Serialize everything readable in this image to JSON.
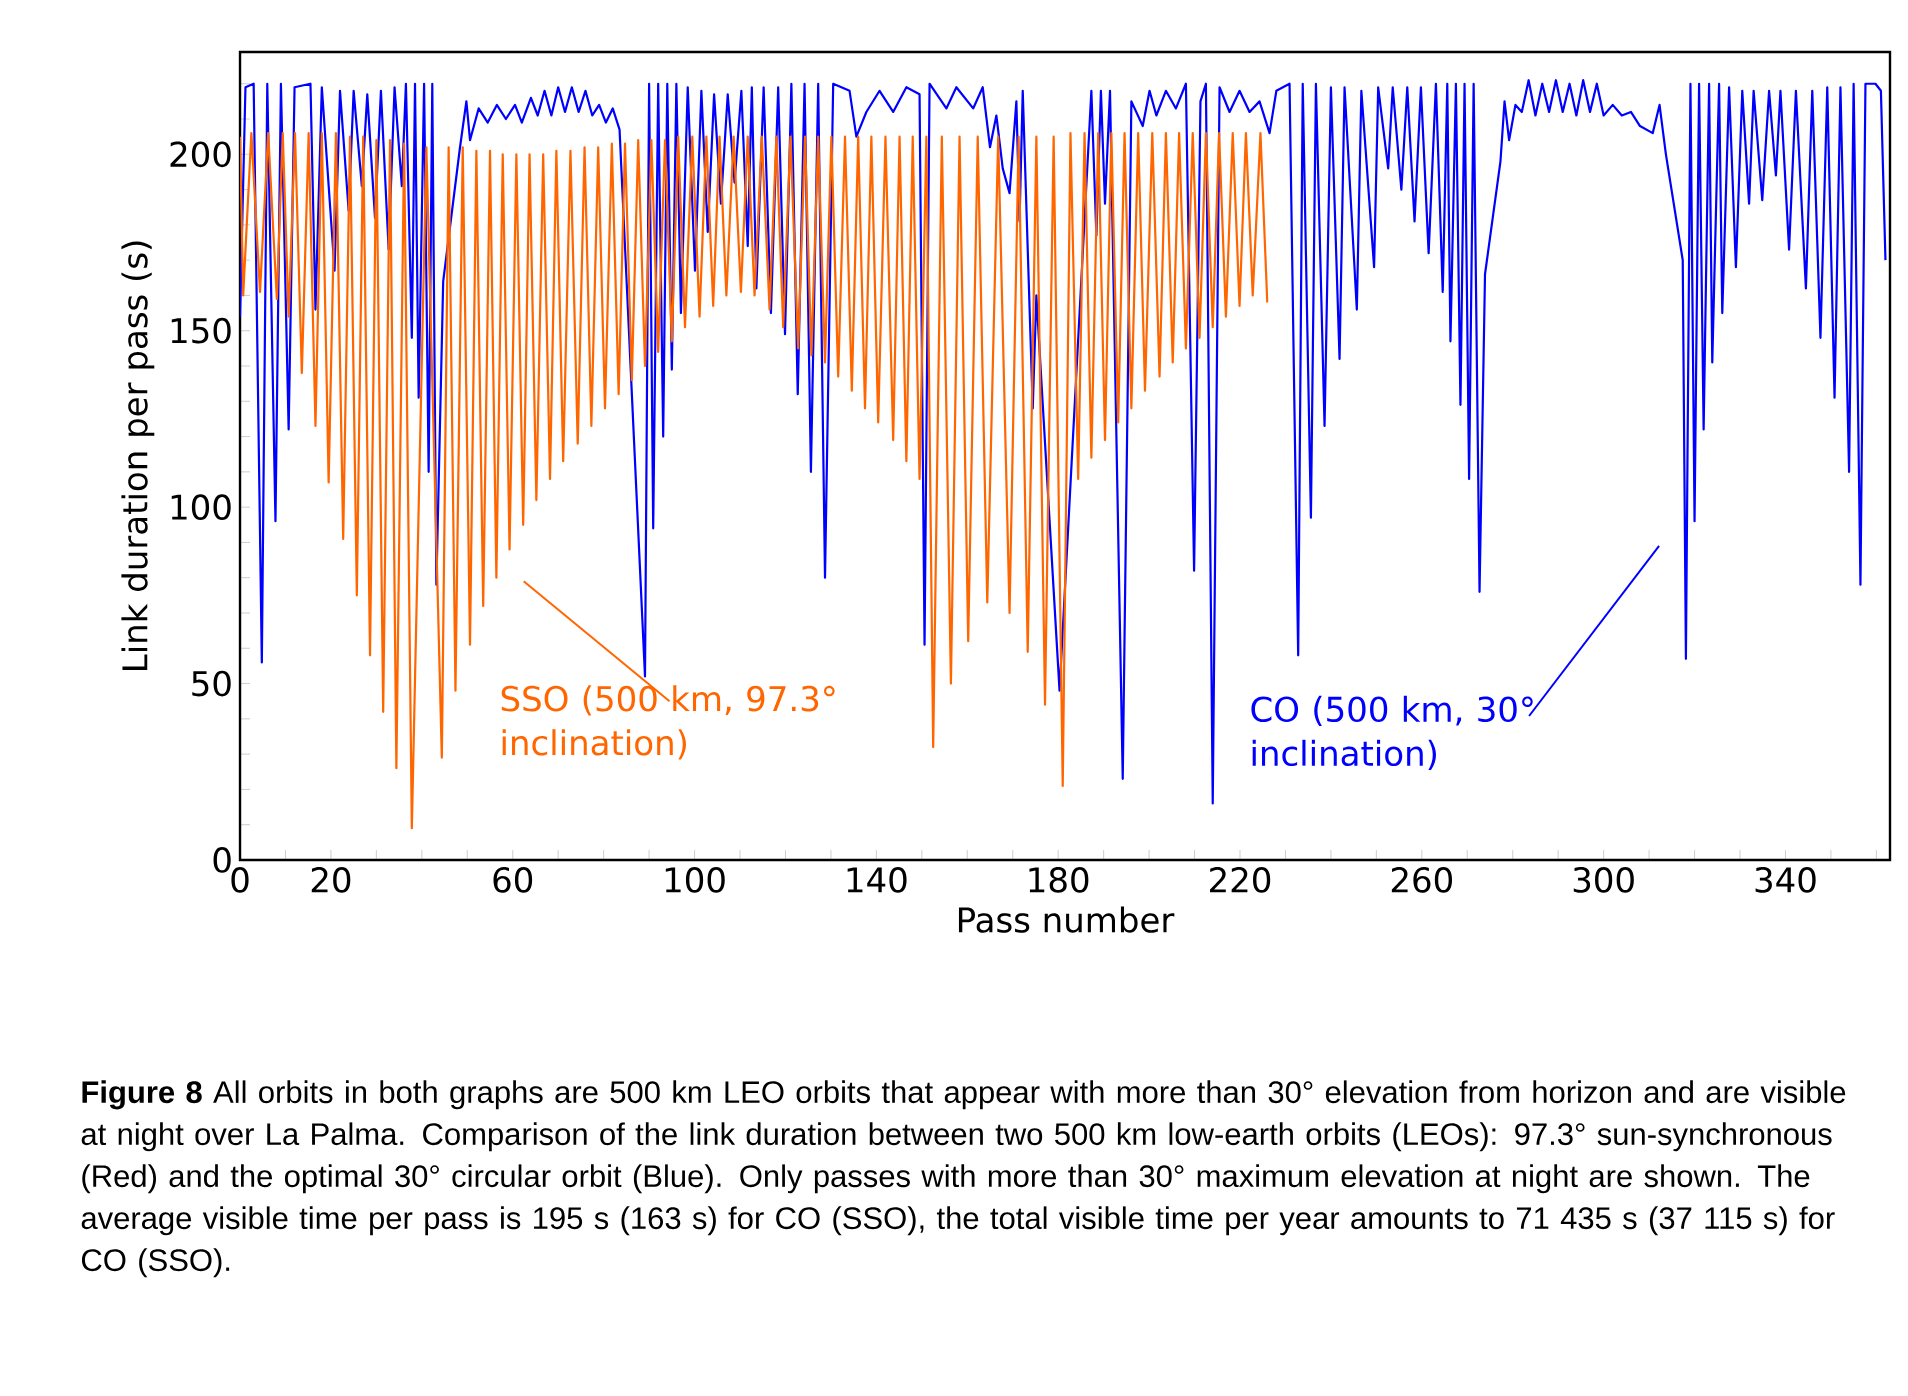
{
  "chart_data": {
    "type": "line",
    "xlabel": "Pass number",
    "ylabel": "Link duration per pass (s)",
    "xlim": [
      0,
      363
    ],
    "ylim": [
      0,
      229
    ],
    "xticks": [
      0,
      {
        "value": 10,
        "label": null
      },
      20,
      {
        "value": 30,
        "label": null
      },
      {
        "value": 40,
        "label": null
      },
      {
        "value": 50,
        "label": null
      },
      60,
      {
        "value": 70,
        "label": null
      },
      {
        "value": 80,
        "label": null
      },
      {
        "value": 90,
        "label": null
      },
      100,
      {
        "value": 110,
        "label": null
      },
      {
        "value": 120,
        "label": null
      },
      {
        "value": 130,
        "label": null
      },
      140,
      {
        "value": 150,
        "label": null
      },
      {
        "value": 160,
        "label": null
      },
      {
        "value": 170,
        "label": null
      },
      180,
      {
        "value": 190,
        "label": null
      },
      {
        "value": 200,
        "label": null
      },
      {
        "value": 210,
        "label": null
      },
      220,
      {
        "value": 230,
        "label": null
      },
      {
        "value": 240,
        "label": null
      },
      {
        "value": 250,
        "label": null
      },
      260,
      {
        "value": 270,
        "label": null
      },
      {
        "value": 280,
        "label": null
      },
      {
        "value": 290,
        "label": null
      },
      300,
      {
        "value": 310,
        "label": null
      },
      {
        "value": 320,
        "label": null
      },
      {
        "value": 330,
        "label": null
      },
      340,
      {
        "value": 350,
        "label": null
      },
      {
        "value": 360,
        "label": null
      }
    ],
    "yticks": [
      0,
      {
        "value": 10,
        "label": null
      },
      {
        "value": 20,
        "label": null
      },
      {
        "value": 30,
        "label": null
      },
      {
        "value": 40,
        "label": null
      },
      50,
      {
        "value": 60,
        "label": null
      },
      {
        "value": 70,
        "label": null
      },
      {
        "value": 80,
        "label": null
      },
      {
        "value": 90,
        "label": null
      },
      100,
      {
        "value": 110,
        "label": null
      },
      {
        "value": 120,
        "label": null
      },
      {
        "value": 130,
        "label": null
      },
      {
        "value": 140,
        "label": null
      },
      150,
      {
        "value": 160,
        "label": null
      },
      {
        "value": 170,
        "label": null
      },
      {
        "value": 180,
        "label": null
      },
      {
        "value": 190,
        "label": null
      },
      200,
      {
        "value": 210,
        "label": null
      },
      {
        "value": 220,
        "label": null
      }
    ],
    "grid": false,
    "legend": false,
    "marker": "none",
    "line_style": "solid",
    "series": [
      {
        "name": "CO (500 km, 30° inclination)",
        "color": "#0000ff",
        "x": [
          0,
          1.2,
          3,
          4.8,
          6,
          7.8,
          9,
          10.7,
          12,
          15.5,
          16.6,
          18,
          20.8,
          22,
          23.9,
          25,
          26.8,
          28,
          29.7,
          31,
          32.7,
          34,
          35.6,
          36.5,
          37.8,
          38.5,
          39.3,
          40.5,
          41.5,
          42.3,
          43.2,
          44.7,
          48.4,
          49.8,
          50.6,
          52.5,
          54.5,
          56.5,
          58.5,
          60.5,
          62,
          64,
          65.5,
          67,
          68.5,
          70,
          71.5,
          73,
          74.5,
          76,
          77.5,
          79,
          80.5,
          82,
          83.5,
          89.1,
          90,
          90.9,
          92,
          93.1,
          94,
          95,
          96,
          97,
          98.5,
          100.1,
          101.5,
          102.9,
          104.3,
          105.8,
          107.3,
          108.8,
          110.3,
          111.7,
          112.6,
          113.6,
          115.2,
          116.8,
          118.4,
          119.9,
          121.3,
          122.7,
          124.2,
          125.6,
          127.2,
          128.7,
          130.5,
          134.1,
          135.6,
          137.8,
          140.7,
          143.7,
          146.6,
          149.5,
          150.6,
          151.7,
          155.4,
          157.6,
          161.3,
          163.4,
          165,
          166.4,
          167.8,
          169.3,
          170.8,
          171.5,
          172.2,
          174.4,
          175.2,
          180.3,
          187.3,
          188.4,
          189.4,
          190.3,
          191.4,
          194.2,
          196.1,
          198.6,
          200.1,
          201.6,
          203.7,
          205.9,
          208.1,
          209.9,
          211.3,
          212.5,
          214,
          215.5,
          217.7,
          219.9,
          222.1,
          224.3,
          226.5,
          228,
          230.9,
          232.8,
          233.8,
          235.6,
          236.7,
          238.6,
          240,
          241.9,
          243,
          245.7,
          246.7,
          249.5,
          250.4,
          252.6,
          253.6,
          255.5,
          256.8,
          258.4,
          259.8,
          261.5,
          263.1,
          264.6,
          265.6,
          266.3,
          267.5,
          268.5,
          269.4,
          270.4,
          271.4,
          272.7,
          273.9,
          277.3,
          278.2,
          279.2,
          280.6,
          282,
          283.5,
          285,
          286.5,
          288,
          289.5,
          291,
          292.5,
          294,
          295.5,
          297,
          298.5,
          300,
          302,
          304,
          306,
          308,
          310.8,
          312.3,
          313.7,
          317.4,
          318.1,
          319.1,
          320,
          321,
          322,
          323.2,
          323.9,
          325.4,
          326.1,
          327.6,
          329.1,
          330.5,
          332,
          333,
          334.9,
          336.4,
          337.9,
          338.9,
          340.8,
          342.3,
          344.5,
          345.9,
          347.7,
          349.2,
          350.8,
          352.1,
          354,
          355,
          356.5,
          357.6,
          359.8,
          361,
          362
        ],
        "values": [
          154,
          219,
          220,
          56,
          220,
          96,
          220,
          122,
          219,
          220,
          156,
          219,
          167,
          218,
          184,
          218,
          191,
          217,
          182,
          218,
          173,
          219,
          191,
          220,
          148,
          220,
          131,
          220,
          110,
          220,
          78,
          164,
          202,
          215,
          204,
          213,
          209,
          214,
          210,
          214,
          209,
          216,
          211,
          218,
          211,
          219,
          212,
          219,
          212,
          218,
          211,
          214,
          209,
          213,
          207,
          52,
          220,
          94,
          220,
          120,
          220,
          139,
          220,
          155,
          219,
          167,
          218,
          178,
          217,
          186,
          217,
          192,
          218,
          174,
          219,
          162,
          219,
          155,
          219,
          149,
          220,
          132,
          220,
          110,
          220,
          80,
          220,
          218,
          205,
          212,
          218,
          212,
          219,
          217,
          61,
          220,
          213,
          219,
          213,
          219,
          202,
          211,
          196,
          189,
          215,
          181,
          218,
          128,
          160,
          48,
          218,
          177,
          218,
          186,
          218,
          23,
          215,
          208,
          218,
          211,
          218,
          213,
          220,
          82,
          215,
          220,
          16,
          219,
          212,
          218,
          212,
          215,
          206,
          218,
          220,
          58,
          220,
          97,
          220,
          123,
          219,
          142,
          219,
          156,
          218,
          168,
          219,
          196,
          219,
          190,
          219,
          181,
          219,
          172,
          220,
          161,
          220,
          147,
          220,
          129,
          220,
          108,
          220,
          76,
          166,
          198,
          215,
          204,
          214,
          212,
          221,
          211,
          220,
          212,
          221,
          212,
          220,
          211,
          221,
          212,
          220,
          211,
          214,
          211,
          212,
          208,
          206,
          214,
          200,
          170,
          57,
          220,
          96,
          220,
          122,
          220,
          141,
          220,
          155,
          219,
          168,
          218,
          186,
          218,
          187,
          218,
          194,
          218,
          173,
          218,
          162,
          218,
          148,
          219,
          131,
          219,
          110,
          220,
          78,
          220,
          220,
          218,
          170
        ]
      },
      {
        "name": "SSO (500 km, 97.3° inclination)",
        "color": "#ff6600",
        "x": [
          0,
          0.7,
          2.5,
          4.4,
          6.2,
          8.1,
          9.4,
          10.7,
          12.1,
          13.6,
          15.1,
          16.6,
          18,
          19.5,
          21.1,
          22.7,
          24.2,
          25.7,
          27.1,
          28.6,
          30,
          31.5,
          33,
          34.4,
          36.1,
          37.8,
          41,
          44.4,
          45.9,
          47.4,
          49,
          50.6,
          52,
          53.5,
          55,
          56.4,
          57.8,
          59.3,
          60.8,
          62.3,
          63.7,
          65.2,
          66.7,
          68.2,
          69.6,
          71.1,
          72.7,
          74.3,
          75.8,
          77.3,
          78.8,
          80.3,
          81.8,
          83.3,
          84.7,
          86.2,
          87.6,
          89.1,
          90.5,
          92,
          93.5,
          95,
          96.4,
          97.9,
          99.5,
          101.1,
          102.6,
          104.1,
          105.5,
          107,
          108.6,
          110.2,
          111.7,
          113.2,
          114.8,
          116.5,
          118,
          119.5,
          121.1,
          122.8,
          124.3,
          125.7,
          127.2,
          128.7,
          130.1,
          131.6,
          133.1,
          134.6,
          136,
          137.5,
          138.9,
          140.4,
          142,
          143.7,
          145.1,
          146.6,
          148,
          149.5,
          151,
          152.5,
          154.4,
          156.4,
          158.3,
          160.2,
          162.3,
          164.4,
          166.8,
          169.3,
          171.3,
          173.3,
          175.2,
          177.1,
          179,
          181,
          182.7,
          184.4,
          185.8,
          187.3,
          188.8,
          190.3,
          191.7,
          193.2,
          194.6,
          196.1,
          197.6,
          199.1,
          200.7,
          202.3,
          203.7,
          205.2,
          206.6,
          208.1,
          209.6,
          211.1,
          212.5,
          214,
          215.4,
          216.9,
          218.4,
          219.9,
          221.3,
          222.8,
          224.5,
          226
        ],
        "values": [
          205,
          160,
          206,
          161,
          206,
          159,
          206,
          154,
          206,
          138,
          206,
          123,
          206,
          107,
          206,
          91,
          205,
          75,
          205,
          58,
          204,
          42,
          204,
          26,
          203,
          9,
          202,
          29,
          202,
          48,
          202,
          61,
          201,
          72,
          201,
          80,
          200,
          88,
          200,
          95,
          200,
          102,
          200,
          108,
          201,
          113,
          201,
          118,
          202,
          123,
          202,
          128,
          203,
          132,
          203,
          136,
          204,
          140,
          204,
          144,
          204,
          147,
          205,
          151,
          205,
          154,
          205,
          157,
          205,
          160,
          205,
          161,
          205,
          160,
          205,
          156,
          205,
          151,
          205,
          145,
          205,
          143,
          205,
          141,
          205,
          137,
          205,
          133,
          205,
          128,
          205,
          124,
          205,
          119,
          205,
          113,
          205,
          108,
          205,
          32,
          205,
          50,
          205,
          62,
          205,
          73,
          205,
          70,
          205,
          59,
          205,
          44,
          205,
          21,
          206,
          108,
          206,
          114,
          206,
          119,
          206,
          124,
          206,
          128,
          206,
          133,
          206,
          137,
          206,
          141,
          206,
          145,
          206,
          148,
          206,
          151,
          206,
          154,
          206,
          157,
          206,
          160,
          206,
          158
        ]
      }
    ],
    "annotations": [
      "**Figure 8** All orbits in both graphs are 500 km LEO orbits that appear with more than 30° elevation from horizon and are visible at night over La Palma. Comparison of the link duration between two 500 km low-earth orbits (LEOs): 97.3° sun-synchronous (Red) and the optimal 30° circular orbit (Blue). Only passes with more than 30° maximum elevation at night are shown. The average visible time per pass is 195 s (163 s) for CO (SSO), the total visible time per year amounts to 71 435 s (37 115 s) for CO (SSO)."
    ]
  }
}
